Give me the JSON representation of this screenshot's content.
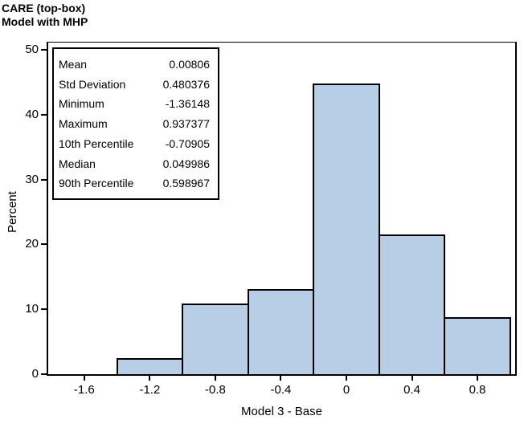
{
  "chart_data": {
    "type": "bar",
    "subtype": "histogram",
    "title": "CARE (top-box)",
    "subtitle": "Model with MHP",
    "xlabel": "Model 3 - Base",
    "ylabel": "Percent",
    "categories": [
      -1.2,
      -0.8,
      -0.4,
      0,
      0.4,
      0.8
    ],
    "values": [
      2.2,
      10.7,
      12.9,
      44.6,
      21.3,
      8.5
    ],
    "bin_width": 0.4,
    "x_ticks": [
      -1.6,
      -1.2,
      -0.8,
      -0.4,
      0,
      0.4,
      0.8
    ],
    "x_tick_labels": [
      "-1.6",
      "-1.2",
      "-0.8",
      "-0.4",
      "0",
      "0.4",
      "0.8"
    ],
    "y_ticks": [
      0,
      10,
      20,
      30,
      40,
      50
    ],
    "xlim": [
      -1.82,
      1.03
    ],
    "ylim": [
      0,
      51.1
    ],
    "grid": false,
    "legend": "none",
    "bar_fill": "#b8cde6",
    "bar_border": "#000000",
    "inset_stats": [
      {
        "label": "Mean",
        "value": "0.00806"
      },
      {
        "label": "Std Deviation",
        "value": "0.480376"
      },
      {
        "label": "Minimum",
        "value": "-1.36148"
      },
      {
        "label": "Maximum",
        "value": "0.937377"
      },
      {
        "label": "10th Percentile",
        "value": "-0.70905"
      },
      {
        "label": "Median",
        "value": "0.049986"
      },
      {
        "label": "90th Percentile",
        "value": "0.598967"
      }
    ]
  }
}
